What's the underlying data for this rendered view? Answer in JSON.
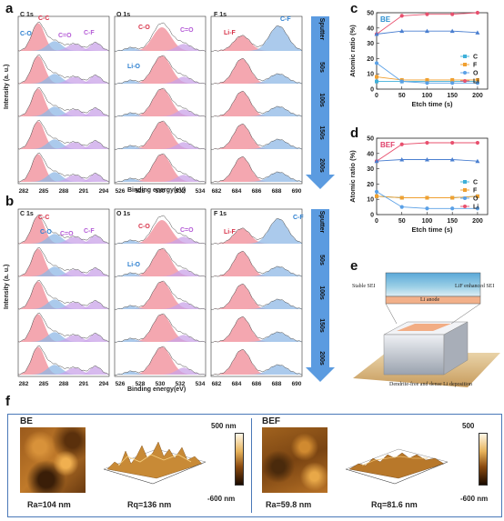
{
  "panel_labels": {
    "a": "a",
    "b": "b",
    "c": "c",
    "d": "d",
    "e": "e",
    "f": "f"
  },
  "xps": {
    "col_titles": [
      "C 1s",
      "O 1s",
      "F 1s"
    ],
    "c_peaks": [
      "C-C",
      "C-O",
      "C=O",
      "C-F"
    ],
    "o_peaks": [
      "C-O",
      "C=O",
      "Li-O"
    ],
    "f_peaks": [
      "Li-F",
      "C-F"
    ],
    "ylabel": "Intensity (a. u.)",
    "xlabel": "Binding energy(eV)",
    "c_ticks": [
      "282",
      "285",
      "288",
      "291",
      "294"
    ],
    "o_ticks": [
      "526",
      "528",
      "530",
      "532",
      "534"
    ],
    "f_ticks": [
      "682",
      "684",
      "686",
      "688",
      "690"
    ],
    "sputter_label": "Sputter",
    "sputter_times": [
      "50s",
      "100s",
      "150s",
      "200s"
    ],
    "colors": {
      "red": "#f08a96",
      "blue": "#8fb8e6",
      "purple": "#c9a3e8",
      "line": "#444444"
    }
  },
  "chart_data": [
    {
      "type": "line",
      "tag": "BE",
      "x": [
        0,
        50,
        100,
        150,
        200
      ],
      "xlabel": "Etch time (s)",
      "ylabel": "Atomic ratio (%)",
      "ylim": [
        0,
        50
      ],
      "yticks": [
        "0",
        "10",
        "20",
        "30",
        "40",
        "50"
      ],
      "xticks": [
        "0",
        "50",
        "100",
        "150",
        "200"
      ],
      "legend": "right",
      "series": [
        {
          "name": "C",
          "color": "#3fb0d9",
          "marker": "square",
          "values": [
            5,
            5,
            5,
            5,
            5
          ]
        },
        {
          "name": "F",
          "color": "#f0a030",
          "marker": "square",
          "values": [
            8,
            6,
            6,
            6,
            6
          ]
        },
        {
          "name": "O",
          "color": "#5aa0e6",
          "marker": "circle",
          "values": [
            17,
            5,
            4,
            4,
            4
          ]
        },
        {
          "name": "Li",
          "color": "#e8506e",
          "marker": "circle",
          "values": [
            36,
            48,
            49,
            49,
            50
          ]
        },
        {
          "name": "",
          "color": "#4a7fd0",
          "marker": "triangle",
          "values": [
            36,
            38,
            38,
            38,
            37
          ]
        }
      ]
    },
    {
      "type": "line",
      "tag": "BEF",
      "x": [
        0,
        50,
        100,
        150,
        200
      ],
      "xlabel": "Etch time (s)",
      "ylabel": "Atomic ratio (%)",
      "ylim": [
        0,
        50
      ],
      "yticks": [
        "0",
        "10",
        "20",
        "30",
        "40",
        "50"
      ],
      "xticks": [
        "0",
        "50",
        "100",
        "150",
        "200"
      ],
      "legend": "right",
      "series": [
        {
          "name": "C",
          "color": "#3fb0d9",
          "marker": "square",
          "values": [
            12,
            11,
            11,
            11,
            12
          ]
        },
        {
          "name": "F",
          "color": "#f0a030",
          "marker": "square",
          "values": [
            12,
            11,
            11,
            11,
            12
          ]
        },
        {
          "name": "O",
          "color": "#5aa0e6",
          "marker": "circle",
          "values": [
            15,
            5,
            4,
            4,
            4
          ]
        },
        {
          "name": "Li",
          "color": "#e8506e",
          "marker": "circle",
          "values": [
            35,
            46,
            47,
            47,
            47
          ]
        },
        {
          "name": "",
          "color": "#4a7fd0",
          "marker": "triangle",
          "values": [
            35,
            36,
            36,
            36,
            35
          ]
        }
      ]
    }
  ],
  "schematic": {
    "stable_sei": "Stable SEI",
    "lif_sei": "LiF enhanced SEI",
    "li_anode": "Li anode",
    "caption": "Dendrite-free and dense Li deposition"
  },
  "afm": {
    "be_label": "BE",
    "bef_label": "BEF",
    "be_ra": "Ra=104 nm",
    "be_rq": "Rq=136 nm",
    "bef_ra": "Ra=59.8 nm",
    "bef_rq": "Rq=81.6 nm",
    "cb_top": "500 nm",
    "cb_bottom": "-600 nm",
    "cb2_top": "500",
    "cb2_bottom": "-600 nm"
  }
}
